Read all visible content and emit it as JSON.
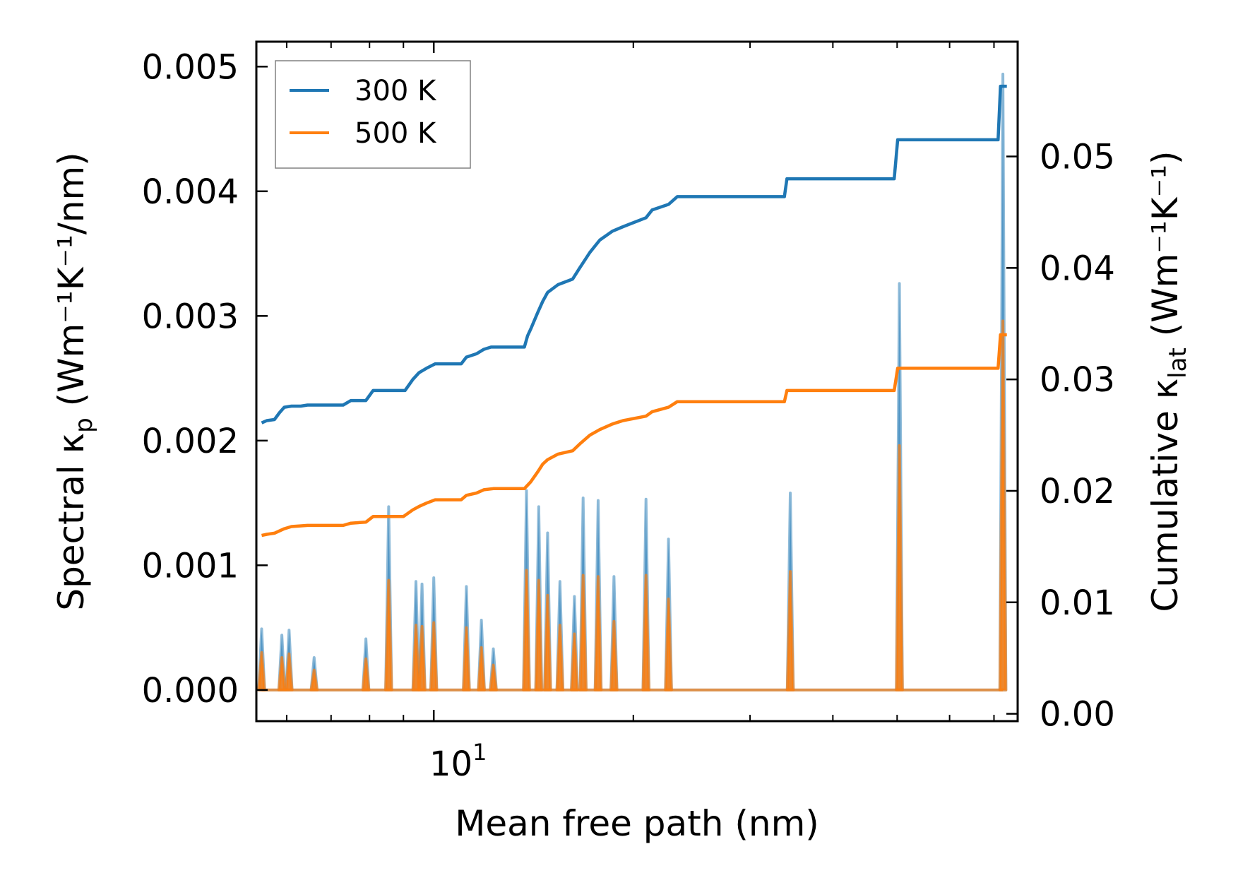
{
  "chart_data": {
    "type": "line",
    "xscale": "log",
    "xlim": [
      5.4,
      76
    ],
    "ylim_left": [
      -0.00025,
      0.0052
    ],
    "ylim_right": [
      -0.00066,
      0.0603
    ],
    "xlabel": "Mean free path (nm)",
    "ylabel_left": {
      "base": "Spectral κ",
      "sub": "p",
      "units": "(Wm⁻¹K⁻¹/nm)"
    },
    "ylabel_right": {
      "base": "Cumulative κ",
      "sub": "lat",
      "units": "(Wm⁻¹K⁻¹)"
    },
    "x_major_tick": {
      "value": 10,
      "base": "10",
      "exp": "1"
    },
    "x_minor_ticks": [
      6,
      7,
      8,
      9,
      20,
      30,
      40,
      50,
      60,
      70
    ],
    "left_ticks": [
      {
        "value": 0,
        "label": "0.000"
      },
      {
        "value": 0.001,
        "label": "0.001"
      },
      {
        "value": 0.002,
        "label": "0.002"
      },
      {
        "value": 0.003,
        "label": "0.003"
      },
      {
        "value": 0.004,
        "label": "0.004"
      },
      {
        "value": 0.005,
        "label": "0.005"
      }
    ],
    "right_ticks": [
      {
        "value": 0,
        "label": "0.00"
      },
      {
        "value": 0.01,
        "label": "0.01"
      },
      {
        "value": 0.02,
        "label": "0.02"
      },
      {
        "value": 0.03,
        "label": "0.03"
      },
      {
        "value": 0.04,
        "label": "0.04"
      },
      {
        "value": 0.05,
        "label": "0.05"
      }
    ],
    "legend": {
      "position": "top-left",
      "entries": [
        "300 K",
        "500 K"
      ]
    },
    "colors": {
      "c300": "#1f77b4",
      "c500": "#ff7f0e"
    },
    "series": [
      {
        "name": "300 K",
        "axis": "right",
        "kind": "cumulative",
        "points": [
          [
            5.5,
            0.0261
          ],
          [
            5.6,
            0.0263
          ],
          [
            5.75,
            0.0264
          ],
          [
            5.85,
            0.027
          ],
          [
            5.95,
            0.0275
          ],
          [
            6.1,
            0.0276
          ],
          [
            6.3,
            0.0276
          ],
          [
            6.45,
            0.0277
          ],
          [
            7.3,
            0.0277
          ],
          [
            7.5,
            0.0281
          ],
          [
            7.9,
            0.0281
          ],
          [
            8.1,
            0.029
          ],
          [
            9.05,
            0.029
          ],
          [
            9.3,
            0.03
          ],
          [
            9.5,
            0.0306
          ],
          [
            9.75,
            0.031
          ],
          [
            10.05,
            0.0314
          ],
          [
            11.0,
            0.0314
          ],
          [
            11.2,
            0.032
          ],
          [
            11.6,
            0.0323
          ],
          [
            11.9,
            0.0327
          ],
          [
            12.2,
            0.0329
          ],
          [
            12.3,
            0.0329
          ],
          [
            13.7,
            0.0329
          ],
          [
            13.85,
            0.0339
          ],
          [
            14.0,
            0.0345
          ],
          [
            14.35,
            0.036
          ],
          [
            14.6,
            0.037
          ],
          [
            14.85,
            0.0378
          ],
          [
            15.4,
            0.0385
          ],
          [
            16.2,
            0.039
          ],
          [
            16.6,
            0.04
          ],
          [
            17.2,
            0.0414
          ],
          [
            17.8,
            0.0425
          ],
          [
            18.6,
            0.0433
          ],
          [
            19.3,
            0.0437
          ],
          [
            20.9,
            0.0445
          ],
          [
            21.35,
            0.0452
          ],
          [
            22.6,
            0.0457
          ],
          [
            23.3,
            0.0464
          ],
          [
            33.8,
            0.0464
          ],
          [
            34.1,
            0.048
          ],
          [
            49.5,
            0.048
          ],
          [
            50.1,
            0.0515
          ],
          [
            71.0,
            0.0515
          ],
          [
            71.6,
            0.0563
          ],
          [
            73.2,
            0.0563
          ]
        ]
      },
      {
        "name": "500 K",
        "axis": "right",
        "kind": "cumulative",
        "points": [
          [
            5.5,
            0.016
          ],
          [
            5.6,
            0.0161
          ],
          [
            5.75,
            0.0162
          ],
          [
            5.95,
            0.0166
          ],
          [
            6.1,
            0.0168
          ],
          [
            6.45,
            0.0169
          ],
          [
            7.3,
            0.0169
          ],
          [
            7.5,
            0.0171
          ],
          [
            7.9,
            0.0172
          ],
          [
            8.1,
            0.0177
          ],
          [
            9.0,
            0.0177
          ],
          [
            9.3,
            0.0183
          ],
          [
            9.5,
            0.0186
          ],
          [
            9.75,
            0.0189
          ],
          [
            10.05,
            0.0192
          ],
          [
            11.0,
            0.0192
          ],
          [
            11.2,
            0.0196
          ],
          [
            11.6,
            0.0198
          ],
          [
            11.9,
            0.0201
          ],
          [
            12.3,
            0.0202
          ],
          [
            13.7,
            0.0202
          ],
          [
            14.0,
            0.0208
          ],
          [
            14.35,
            0.0217
          ],
          [
            14.6,
            0.0224
          ],
          [
            14.85,
            0.0228
          ],
          [
            15.4,
            0.0233
          ],
          [
            16.2,
            0.0236
          ],
          [
            16.6,
            0.0242
          ],
          [
            17.2,
            0.025
          ],
          [
            17.8,
            0.0255
          ],
          [
            18.6,
            0.026
          ],
          [
            19.3,
            0.0263
          ],
          [
            20.9,
            0.0267
          ],
          [
            21.35,
            0.0271
          ],
          [
            22.6,
            0.0275
          ],
          [
            23.3,
            0.028
          ],
          [
            33.8,
            0.028
          ],
          [
            34.1,
            0.029
          ],
          [
            49.5,
            0.029
          ],
          [
            50.1,
            0.031
          ],
          [
            71.0,
            0.031
          ],
          [
            71.6,
            0.034
          ],
          [
            73.2,
            0.034
          ]
        ]
      },
      {
        "name": "300 K spectral",
        "axis": "left",
        "kind": "spectral",
        "peaks": [
          [
            5.5,
            0.00049
          ],
          [
            5.9,
            0.00044
          ],
          [
            6.05,
            0.00048
          ],
          [
            6.6,
            0.00026
          ],
          [
            7.9,
            0.00041
          ],
          [
            8.55,
            0.00147
          ],
          [
            9.4,
            0.00087
          ],
          [
            9.6,
            0.00085
          ],
          [
            10.0,
            0.0009
          ],
          [
            11.2,
            0.00083
          ],
          [
            11.8,
            0.00056
          ],
          [
            12.3,
            0.00033
          ],
          [
            13.8,
            0.0016
          ],
          [
            14.4,
            0.00147
          ],
          [
            14.85,
            0.00126
          ],
          [
            15.5,
            0.00087
          ],
          [
            16.3,
            0.00075
          ],
          [
            16.8,
            0.00154
          ],
          [
            17.7,
            0.00152
          ],
          [
            18.7,
            0.00091
          ],
          [
            20.9,
            0.00153
          ],
          [
            22.6,
            0.00121
          ],
          [
            34.5,
            0.00158
          ],
          [
            50.4,
            0.00326
          ],
          [
            72.2,
            0.00494
          ]
        ]
      },
      {
        "name": "500 K spectral",
        "axis": "left",
        "kind": "spectral",
        "peaks": [
          [
            5.5,
            0.0003
          ],
          [
            5.9,
            0.00026
          ],
          [
            6.05,
            0.00029
          ],
          [
            6.6,
            0.00016
          ],
          [
            7.9,
            0.00025
          ],
          [
            8.55,
            0.00088
          ],
          [
            9.4,
            0.00052
          ],
          [
            9.6,
            0.00051
          ],
          [
            10.0,
            0.00054
          ],
          [
            11.2,
            0.0005
          ],
          [
            11.8,
            0.00034
          ],
          [
            12.3,
            0.0002
          ],
          [
            13.8,
            0.00096
          ],
          [
            14.4,
            0.00088
          ],
          [
            14.85,
            0.00076
          ],
          [
            15.5,
            0.00052
          ],
          [
            16.3,
            0.00045
          ],
          [
            16.8,
            0.00092
          ],
          [
            17.7,
            0.00091
          ],
          [
            18.7,
            0.00055
          ],
          [
            20.9,
            0.00092
          ],
          [
            22.6,
            0.00073
          ],
          [
            34.5,
            0.00095
          ],
          [
            50.4,
            0.00196
          ],
          [
            72.2,
            0.00296
          ]
        ]
      }
    ]
  }
}
